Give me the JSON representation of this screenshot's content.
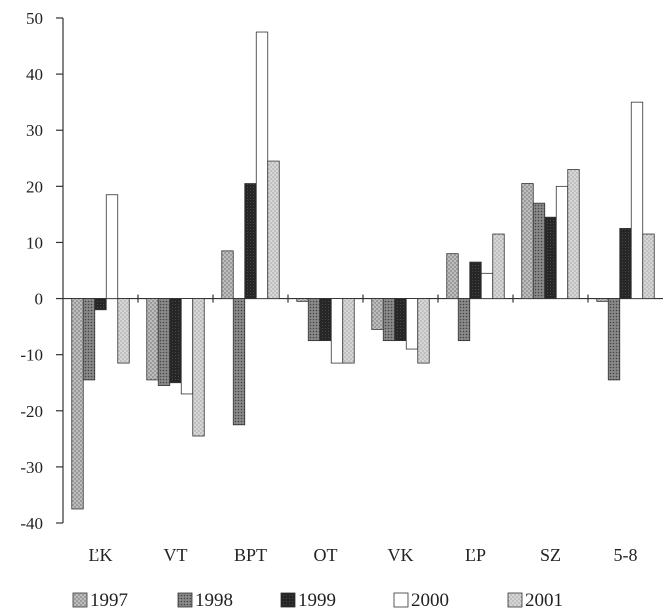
{
  "chart_data": {
    "type": "bar",
    "categories": [
      "ĽK",
      "VT",
      "BPT",
      "OT",
      "VK",
      "ĽP",
      "SZ",
      "5-8"
    ],
    "series": [
      {
        "name": "1997",
        "values": [
          -37.5,
          -14.5,
          8.5,
          -0.5,
          -5.5,
          8,
          20.5,
          -0.5
        ]
      },
      {
        "name": "1998",
        "values": [
          -14.5,
          -15.5,
          -22.5,
          -7.5,
          -7.5,
          -7.5,
          17,
          -14.5
        ]
      },
      {
        "name": "1999",
        "values": [
          -2,
          -15,
          20.5,
          -7.5,
          -7.5,
          6.5,
          14.5,
          12.5
        ]
      },
      {
        "name": "2000",
        "values": [
          18.5,
          -17,
          47.5,
          -11.5,
          -9,
          4.5,
          20,
          35
        ]
      },
      {
        "name": "2001",
        "values": [
          -11.5,
          -24.5,
          24.5,
          -11.5,
          -11.5,
          11.5,
          23,
          11.5
        ]
      }
    ],
    "ylim": [
      -40,
      50
    ],
    "yticks": [
      50,
      40,
      30,
      20,
      10,
      0,
      -10,
      -20,
      -30,
      -40
    ],
    "legend_position": "bottom",
    "colors": {
      "1997": "#b4b4b4",
      "1998": "#7a7a7a",
      "1999": "#2a2a2a",
      "2000": "#ffffff",
      "2001": "#c8c8c8"
    }
  }
}
